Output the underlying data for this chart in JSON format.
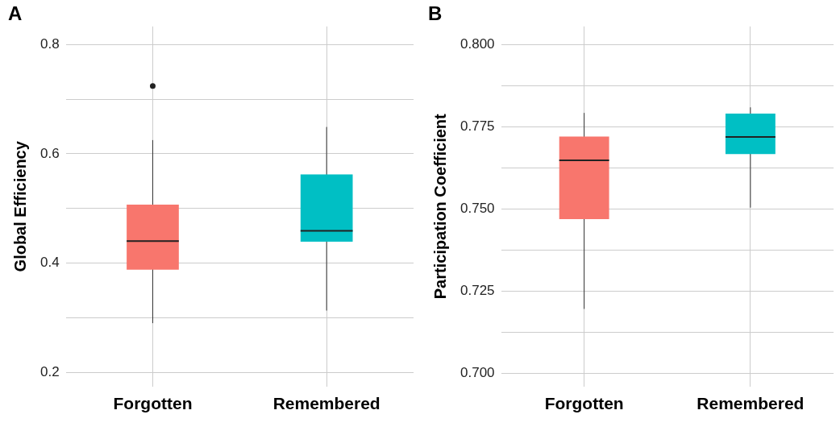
{
  "chart_data": [
    {
      "type": "box",
      "title": "A",
      "ylabel": "Global Efficiency",
      "categories": [
        "Forgotten",
        "Remembered"
      ],
      "colors": [
        "#f8766d",
        "#00bfc4"
      ],
      "grid": true,
      "boxes": [
        {
          "low": 0.29,
          "q1": 0.388,
          "median": 0.44,
          "q3": 0.507,
          "high": 0.625,
          "outliers": [
            0.724
          ]
        },
        {
          "low": 0.313,
          "q1": 0.439,
          "median": 0.459,
          "q3": 0.562,
          "high": 0.649
        }
      ],
      "ylim": [
        0.174,
        0.833
      ],
      "yticks": [
        0.2,
        {
          "value": 0.3,
          "label": null
        },
        0.4,
        {
          "value": 0.5,
          "label": null
        },
        0.6,
        {
          "value": 0.7,
          "label": null
        },
        0.8
      ]
    },
    {
      "type": "box",
      "title": "B",
      "ylabel": "Participation Coefficient",
      "categories": [
        "Forgotten",
        "Remembered"
      ],
      "colors": [
        "#f8766d",
        "#00bfc4"
      ],
      "grid": true,
      "boxes": [
        {
          "low": 0.7196,
          "q1": 0.7469,
          "median": 0.7648,
          "q3": 0.772,
          "high": 0.7792
        },
        {
          "low": 0.7504,
          "q1": 0.7667,
          "median": 0.7719,
          "q3": 0.779,
          "high": 0.7809
        }
      ],
      "ylim": [
        0.696,
        0.8055
      ],
      "yticks": [
        {
          "value": 0.7,
          "label": "0.700"
        },
        {
          "value": 0.7125,
          "label": null
        },
        {
          "value": 0.725,
          "label": "0.725"
        },
        {
          "value": 0.7375,
          "label": null
        },
        {
          "value": 0.75,
          "label": "0.750"
        },
        {
          "value": 0.7625,
          "label": null
        },
        {
          "value": 0.775,
          "label": "0.775"
        },
        {
          "value": 0.7875,
          "label": null
        },
        {
          "value": 0.8,
          "label": "0.800"
        }
      ]
    }
  ]
}
